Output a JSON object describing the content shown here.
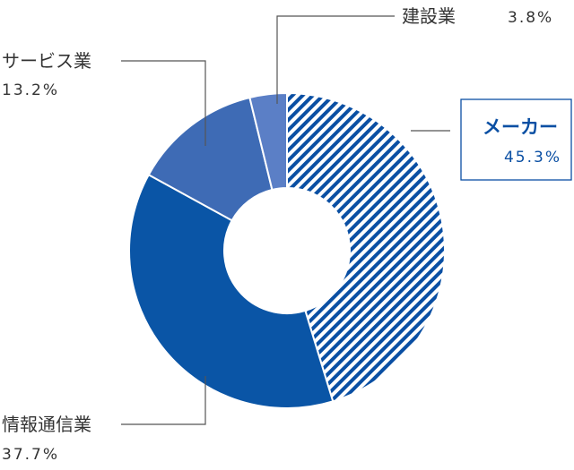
{
  "colors": {
    "maker_stripe": "#0a4fa3",
    "info": "#0a55a6",
    "service": "#3e6bb5",
    "construction": "#5b7fc6",
    "highlight": "#0a4fa3",
    "leader": "#555555"
  },
  "chart_data": {
    "type": "pie",
    "title": "",
    "slices": [
      {
        "label": "メーカー",
        "value": 45.3,
        "display": "45.3%",
        "pattern": "hatch",
        "highlight": true
      },
      {
        "label": "情報通信業",
        "value": 37.7,
        "display": "37.7%"
      },
      {
        "label": "サービス業",
        "value": 13.2,
        "display": "13.2%"
      },
      {
        "label": "建設業",
        "value": 3.8,
        "display": "3.8%"
      }
    ],
    "start_angle_deg": 0,
    "direction": "clockwise"
  }
}
